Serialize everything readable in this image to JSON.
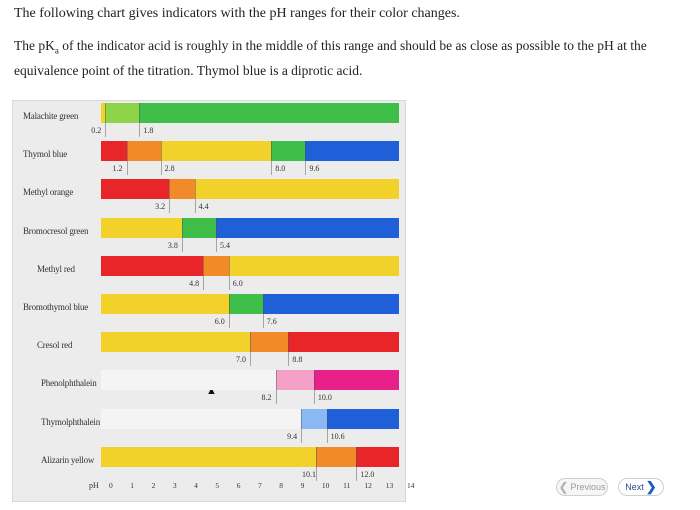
{
  "intro": "The following chart gives indicators with the pH ranges for their color changes.",
  "para": {
    "a": "The pK",
    "sub": "a",
    "b": " of the indicator acid is roughly in the middle of this range and should be as close as possible to the pH at the equivalence point of the titration. Thymol blue is a diprotic acid."
  },
  "chart_data": {
    "type": "table",
    "axis_label": "pH",
    "axis_ticks": [
      "0",
      "1",
      "2",
      "3",
      "4",
      "5",
      "6",
      "7",
      "8",
      "9",
      "10",
      "11",
      "12",
      "13",
      "14"
    ],
    "indicators": [
      {
        "name": "Malachite green",
        "segments": [
          {
            "from": 0,
            "to": 0.2,
            "color": "#f2d22a"
          },
          {
            "from": 0.2,
            "to": 1.8,
            "color": "#8ed348"
          },
          {
            "from": 1.8,
            "to": 14,
            "color": "#3fbf4a"
          }
        ],
        "ticks": [
          "0.2",
          "1.8"
        ]
      },
      {
        "name": "Thymol blue",
        "segments": [
          {
            "from": 0,
            "to": 1.2,
            "color": "#e8262a"
          },
          {
            "from": 1.2,
            "to": 2.8,
            "color": "#f28a2a"
          },
          {
            "from": 2.8,
            "to": 8.0,
            "color": "#f2d22a"
          },
          {
            "from": 8.0,
            "to": 9.6,
            "color": "#3fbf4a"
          },
          {
            "from": 9.6,
            "to": 14,
            "color": "#1f5fd8"
          }
        ],
        "ticks": [
          "1.2",
          "2.8",
          "8.0",
          "9.6"
        ]
      },
      {
        "name": "Methyl orange",
        "segments": [
          {
            "from": 0,
            "to": 3.2,
            "color": "#e8262a"
          },
          {
            "from": 3.2,
            "to": 4.4,
            "color": "#f28a2a"
          },
          {
            "from": 4.4,
            "to": 14,
            "color": "#f2d22a"
          }
        ],
        "ticks": [
          "3.2",
          "4.4"
        ]
      },
      {
        "name": "Bromocresol green",
        "segments": [
          {
            "from": 0,
            "to": 3.8,
            "color": "#f2d22a"
          },
          {
            "from": 3.8,
            "to": 5.4,
            "color": "#3fbf4a"
          },
          {
            "from": 5.4,
            "to": 14,
            "color": "#1f5fd8"
          }
        ],
        "ticks": [
          "3.8",
          "5.4"
        ]
      },
      {
        "name": "Methyl red",
        "segments": [
          {
            "from": 0,
            "to": 4.8,
            "color": "#e8262a"
          },
          {
            "from": 4.8,
            "to": 6.0,
            "color": "#f28a2a"
          },
          {
            "from": 6.0,
            "to": 14,
            "color": "#f2d22a"
          }
        ],
        "ticks": [
          "4.8",
          "6.0"
        ]
      },
      {
        "name": "Bromothymol blue",
        "segments": [
          {
            "from": 0,
            "to": 6.0,
            "color": "#f2d22a"
          },
          {
            "from": 6.0,
            "to": 7.6,
            "color": "#3fbf4a"
          },
          {
            "from": 7.6,
            "to": 14,
            "color": "#1f5fd8"
          }
        ],
        "ticks": [
          "6.0",
          "7.6"
        ]
      },
      {
        "name": "Cresol red",
        "segments": [
          {
            "from": 0,
            "to": 7.0,
            "color": "#f2d22a"
          },
          {
            "from": 7.0,
            "to": 8.8,
            "color": "#f28a2a"
          },
          {
            "from": 8.8,
            "to": 14,
            "color": "#e8262a"
          }
        ],
        "ticks": [
          "7.0",
          "8.8"
        ]
      },
      {
        "name": "Phenolphthalein",
        "segments": [
          {
            "from": 0,
            "to": 8.2,
            "color": "#f4f4f4"
          },
          {
            "from": 8.2,
            "to": 10.0,
            "color": "#f4a0c8"
          },
          {
            "from": 10.0,
            "to": 14,
            "color": "#e8208a"
          }
        ],
        "ticks": [
          "8.2",
          "10.0"
        ]
      },
      {
        "name": "Thymolphthalein",
        "segments": [
          {
            "from": 0,
            "to": 9.4,
            "color": "#f4f4f4"
          },
          {
            "from": 9.4,
            "to": 10.6,
            "color": "#8ab8f2"
          },
          {
            "from": 10.6,
            "to": 14,
            "color": "#1f5fd8"
          }
        ],
        "ticks": [
          "9.4",
          "10.6"
        ]
      },
      {
        "name": "Alizarin yellow",
        "segments": [
          {
            "from": 0,
            "to": 10.1,
            "color": "#f2d22a"
          },
          {
            "from": 10.1,
            "to": 12.0,
            "color": "#f28a2a"
          },
          {
            "from": 12.0,
            "to": 14,
            "color": "#e8262a"
          }
        ],
        "ticks": [
          "10.1",
          "12.0"
        ]
      }
    ]
  },
  "nav": {
    "previous": "Previous",
    "next": "Next"
  },
  "icons": {
    "prev": "chevron-left-icon",
    "next": "chevron-right-icon",
    "cursor": "mouse-cursor-icon"
  }
}
